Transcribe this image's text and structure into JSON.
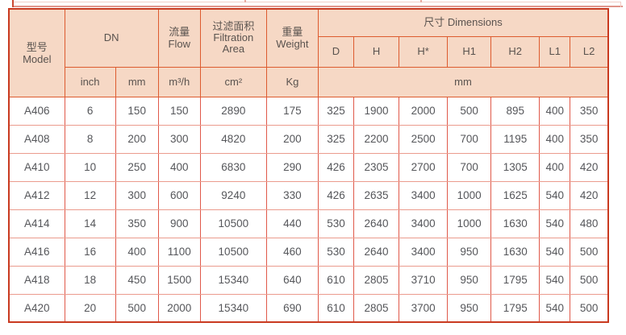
{
  "table": {
    "header": {
      "model": {
        "zh": "型号",
        "en": "Model"
      },
      "dn": "DN",
      "flow": {
        "zh": "流量",
        "en": "Flow"
      },
      "filtration_area": {
        "zh": "过滤面积",
        "en_line1": "Filtration",
        "en_line2": "Area"
      },
      "weight": {
        "zh": "重量",
        "en": "Weight"
      },
      "dimensions": "尺寸 Dimensions",
      "dimension_columns": [
        "D",
        "H",
        "H*",
        "H1",
        "H2",
        "L1",
        "L2"
      ],
      "units": {
        "dn_inch": "inch",
        "dn_mm": "mm",
        "flow": "m³/h",
        "area": "cm²",
        "weight": "Kg",
        "dimensions": "mm"
      }
    },
    "rows": [
      [
        "A406",
        "6",
        "150",
        "150",
        "2890",
        "175",
        "325",
        "1900",
        "2000",
        "500",
        "895",
        "400",
        "350"
      ],
      [
        "A408",
        "8",
        "200",
        "300",
        "4820",
        "200",
        "325",
        "2200",
        "2500",
        "700",
        "1195",
        "400",
        "350"
      ],
      [
        "A410",
        "10",
        "250",
        "400",
        "6830",
        "290",
        "426",
        "2305",
        "2700",
        "700",
        "1305",
        "400",
        "420"
      ],
      [
        "A412",
        "12",
        "300",
        "600",
        "9240",
        "330",
        "426",
        "2635",
        "3400",
        "1000",
        "1625",
        "540",
        "420"
      ],
      [
        "A414",
        "14",
        "350",
        "900",
        "10500",
        "440",
        "530",
        "2640",
        "3400",
        "1000",
        "1630",
        "540",
        "480"
      ],
      [
        "A416",
        "16",
        "400",
        "1100",
        "10500",
        "460",
        "530",
        "2640",
        "3400",
        "950",
        "1630",
        "540",
        "500"
      ],
      [
        "A418",
        "18",
        "450",
        "1500",
        "15340",
        "640",
        "610",
        "2805",
        "3710",
        "950",
        "1795",
        "540",
        "500"
      ],
      [
        "A420",
        "20",
        "500",
        "2000",
        "15340",
        "690",
        "610",
        "2805",
        "3700",
        "950",
        "1795",
        "540",
        "500"
      ]
    ],
    "colors": {
      "header_background": "#f6d8c5",
      "outer_border": "#c93a20",
      "header_border": "#dd5b2f",
      "data_vertical_border": "#e0594a",
      "data_horizontal_border": "#eb9b8d",
      "text": "#55565a"
    }
  }
}
